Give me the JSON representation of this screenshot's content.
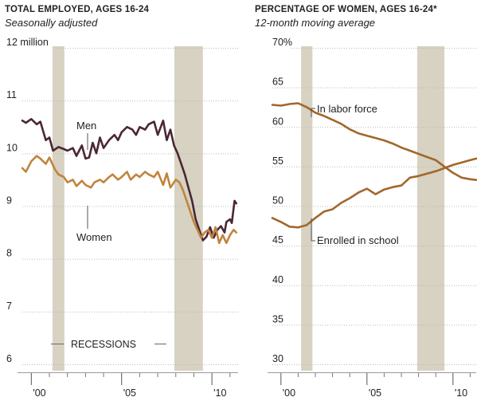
{
  "colors": {
    "men": "#4a2735",
    "women": "#c1843d",
    "labor": "#a2672b",
    "school": "#a2672b",
    "recession": "#d7d2c2",
    "grid": "#b9b9b9"
  },
  "chart_data": [
    {
      "type": "line",
      "title": "TOTAL EMPLOYED, AGES 16-24",
      "subtitle": "Seasonally adjusted",
      "xlabel": "",
      "ylabel": "",
      "xlim": [
        1999.5,
        2011.45
      ],
      "ylim": [
        6,
        12
      ],
      "ytick_values": [
        6,
        7,
        8,
        9,
        10,
        11,
        12
      ],
      "ytick_labels": [
        "6",
        "7",
        "8",
        "9",
        "10",
        "11",
        "12 million"
      ],
      "xtick_values": [
        2000,
        2005,
        2010
      ],
      "xtick_labels": [
        "'00",
        "'05",
        "'10"
      ],
      "grid": true,
      "recessions": [
        [
          2001.17,
          2001.83
        ],
        [
          2007.92,
          2009.5
        ]
      ],
      "recessions_label": "RECESSIONS",
      "series": [
        {
          "name": "Men",
          "x": [
            1999.5,
            1999.7,
            2000.0,
            2000.3,
            2000.5,
            2000.8,
            2001.0,
            2001.2,
            2001.5,
            2001.8,
            2002.0,
            2002.3,
            2002.5,
            2002.8,
            2003.0,
            2003.2,
            2003.4,
            2003.6,
            2003.8,
            2004.0,
            2004.3,
            2004.6,
            2004.8,
            2005.0,
            2005.3,
            2005.6,
            2005.8,
            2006.0,
            2006.3,
            2006.5,
            2006.8,
            2007.0,
            2007.3,
            2007.5,
            2007.7,
            2007.9,
            2008.1,
            2008.3,
            2008.5,
            2008.7,
            2008.9,
            2009.1,
            2009.3,
            2009.5,
            2009.7,
            2009.9,
            2010.1,
            2010.3,
            2010.5,
            2010.7,
            2010.8,
            2011.0,
            2011.1,
            2011.25,
            2011.35
          ],
          "values": [
            10.62,
            10.58,
            10.65,
            10.55,
            10.6,
            10.25,
            10.3,
            10.05,
            10.12,
            10.08,
            10.05,
            10.1,
            9.95,
            10.15,
            9.9,
            9.92,
            10.2,
            10.0,
            10.3,
            10.1,
            10.25,
            10.35,
            10.25,
            10.4,
            10.5,
            10.45,
            10.35,
            10.5,
            10.45,
            10.55,
            10.6,
            10.35,
            10.62,
            10.25,
            10.45,
            10.15,
            10.0,
            9.8,
            9.6,
            9.35,
            9.1,
            8.75,
            8.55,
            8.35,
            8.42,
            8.6,
            8.4,
            8.55,
            8.62,
            8.5,
            8.7,
            8.75,
            8.68,
            9.1,
            9.05
          ]
        },
        {
          "name": "Women",
          "x": [
            1999.5,
            1999.7,
            2000.0,
            2000.3,
            2000.5,
            2000.8,
            2001.0,
            2001.3,
            2001.5,
            2001.8,
            2002.0,
            2002.3,
            2002.5,
            2002.8,
            2003.0,
            2003.3,
            2003.5,
            2003.8,
            2004.0,
            2004.3,
            2004.5,
            2004.8,
            2005.0,
            2005.3,
            2005.5,
            2005.8,
            2006.0,
            2006.3,
            2006.5,
            2006.8,
            2007.0,
            2007.3,
            2007.5,
            2007.7,
            2008.0,
            2008.2,
            2008.4,
            2008.6,
            2008.8,
            2009.0,
            2009.2,
            2009.4,
            2009.6,
            2009.8,
            2010.0,
            2010.2,
            2010.4,
            2010.6,
            2010.8,
            2011.0,
            2011.2,
            2011.35
          ],
          "values": [
            9.72,
            9.65,
            9.85,
            9.95,
            9.9,
            9.8,
            9.92,
            9.7,
            9.6,
            9.55,
            9.45,
            9.5,
            9.38,
            9.48,
            9.4,
            9.35,
            9.45,
            9.5,
            9.45,
            9.55,
            9.6,
            9.5,
            9.55,
            9.65,
            9.5,
            9.6,
            9.55,
            9.65,
            9.6,
            9.55,
            9.65,
            9.4,
            9.62,
            9.35,
            9.5,
            9.45,
            9.3,
            9.1,
            8.9,
            8.7,
            8.55,
            8.4,
            8.5,
            8.55,
            8.4,
            8.6,
            8.3,
            8.45,
            8.3,
            8.45,
            8.55,
            8.5
          ]
        }
      ]
    },
    {
      "type": "line",
      "title": "PERCENTAGE OF WOMEN, AGES 16-24*",
      "subtitle": "12-month moving average",
      "xlabel": "",
      "ylabel": "",
      "xlim": [
        1999.5,
        2011.35
      ],
      "ylim": [
        30,
        70
      ],
      "ytick_values": [
        30,
        35,
        40,
        45,
        50,
        55,
        60,
        65,
        70
      ],
      "ytick_labels": [
        "30",
        "35",
        "40",
        "45",
        "50",
        "55",
        "60",
        "65",
        "70%"
      ],
      "xtick_values": [
        2000,
        2005,
        2010
      ],
      "xtick_labels": [
        "'00",
        "'05",
        "'10"
      ],
      "grid": true,
      "recessions": [
        [
          2001.17,
          2001.83
        ],
        [
          2007.92,
          2009.5
        ]
      ],
      "series": [
        {
          "name": "In labor force",
          "x": [
            1999.5,
            2000.0,
            2000.5,
            2001.0,
            2001.5,
            2002.0,
            2002.5,
            2003.0,
            2003.5,
            2004.0,
            2004.5,
            2005.0,
            2005.5,
            2006.0,
            2006.5,
            2007.0,
            2007.5,
            2008.0,
            2008.5,
            2009.0,
            2009.5,
            2010.0,
            2010.5,
            2011.0,
            2011.35
          ],
          "values": [
            62.8,
            62.7,
            62.9,
            63.0,
            62.5,
            61.8,
            61.4,
            60.9,
            60.4,
            59.7,
            59.2,
            58.9,
            58.6,
            58.3,
            57.9,
            57.4,
            57.0,
            56.6,
            56.2,
            55.8,
            55.0,
            54.2,
            53.6,
            53.4,
            53.3
          ]
        },
        {
          "name": "Enrolled in school",
          "x": [
            1999.5,
            2000.0,
            2000.5,
            2001.0,
            2001.5,
            2002.0,
            2002.5,
            2003.0,
            2003.5,
            2004.0,
            2004.5,
            2005.0,
            2005.5,
            2006.0,
            2006.5,
            2007.0,
            2007.5,
            2008.0,
            2008.5,
            2009.0,
            2009.5,
            2010.0,
            2010.5,
            2011.0,
            2011.35
          ],
          "values": [
            48.5,
            48.0,
            47.4,
            47.3,
            47.6,
            48.5,
            49.3,
            49.6,
            50.4,
            51.0,
            51.7,
            52.2,
            51.5,
            52.1,
            52.4,
            52.6,
            53.6,
            53.8,
            54.1,
            54.4,
            54.8,
            55.2,
            55.5,
            55.8,
            56.0
          ]
        }
      ]
    }
  ]
}
